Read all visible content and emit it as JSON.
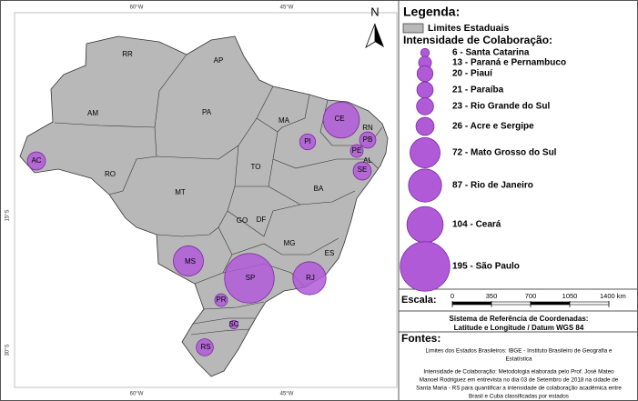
{
  "map": {
    "coordinates": {
      "top": [
        "60°W",
        "45°W"
      ],
      "bottom": [
        "60°W",
        "45°W"
      ],
      "left": [
        "15°S",
        "30°S"
      ]
    },
    "north": "N",
    "states": [
      "RR",
      "AP",
      "AM",
      "PA",
      "MA",
      "CE",
      "RN",
      "PB",
      "PE",
      "AL",
      "SE",
      "PI",
      "TO",
      "BA",
      "AC",
      "RO",
      "MT",
      "GO",
      "DF",
      "MG",
      "ES",
      "MS",
      "SP",
      "RJ",
      "PR",
      "SC",
      "RS"
    ]
  },
  "legend": {
    "title": "Legenda:",
    "boundary": "Limites Estaduais",
    "subtitle": "Intensidade de Colaboração:",
    "color": "#b05ad8",
    "items": [
      {
        "value": 6,
        "label": "6 - Santa Catarina"
      },
      {
        "value": 13,
        "label": "13 - Paraná e Pernambuco"
      },
      {
        "value": 20,
        "label": "20 - Piauí"
      },
      {
        "value": 21,
        "label": "21 - Paraíba"
      },
      {
        "value": 23,
        "label": "23 - Rio Grande do Sul"
      },
      {
        "value": 26,
        "label": "26 - Acre e Sergipe"
      },
      {
        "value": 72,
        "label": "72 - Mato Grosso do Sul"
      },
      {
        "value": 87,
        "label": "87 - Rio de Janeiro"
      },
      {
        "value": 104,
        "label": "104 - Ceará"
      },
      {
        "value": 195,
        "label": "195 - São Paulo"
      }
    ]
  },
  "scale": {
    "title": "Escala:",
    "ticks": [
      0,
      350,
      700,
      1050,
      {
        "value": 1400,
        "label": "1400 km"
      }
    ]
  },
  "reference": {
    "title": "Sistema de Referência de Coordenadas:",
    "text": "Latitude e Longitude / Datum WGS 84"
  },
  "sources": {
    "title": "Fontes:",
    "lines": [
      "Limites dos Estados Brasileiros: IBGE -  Instituto Brasileiro de Geografia e",
      "Estatística",
      "Intensidade de Colaboração: Metodologia elaborada pelo Prof. José Mateo",
      "Manoel Rodriguez em entrevista no dia 03 de Setembro de 2018 na cidade de",
      "Santa Maria - RS para quantificar a intensidade de colaboração acadêmica entre",
      "Brasil e Cuba classificadas por estados"
    ]
  }
}
